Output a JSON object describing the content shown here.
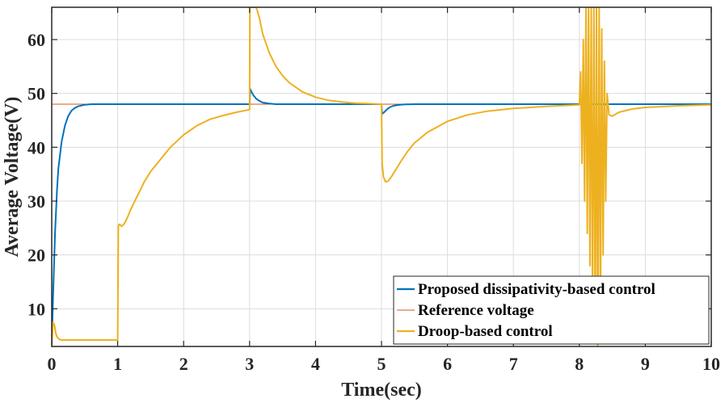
{
  "chart_data": {
    "type": "line",
    "title": "",
    "xlabel": "Time(sec)",
    "ylabel": "Average Voltage(V)",
    "xlim": [
      0,
      10
    ],
    "ylim": [
      3,
      66
    ],
    "xticks": [
      0,
      1,
      2,
      3,
      4,
      5,
      6,
      7,
      8,
      9,
      10
    ],
    "yticks": [
      10,
      20,
      30,
      40,
      50,
      60
    ],
    "grid": true,
    "legend_position": "bottom-right",
    "series": [
      {
        "name": "Proposed dissipativity-based control",
        "color": "#0072BD",
        "x": [
          0,
          0.02,
          0.05,
          0.08,
          0.1,
          0.15,
          0.2,
          0.25,
          0.3,
          0.35,
          0.4,
          0.5,
          0.6,
          0.8,
          1.0,
          2.0,
          3.0,
          3.01,
          3.03,
          3.06,
          3.1,
          3.15,
          3.2,
          3.3,
          3.4,
          3.6,
          4.0,
          5.0,
          5.01,
          5.04,
          5.08,
          5.12,
          5.18,
          5.25,
          5.35,
          5.5,
          6.0,
          7.0,
          8.0,
          9.0,
          10.0
        ],
        "y": [
          3,
          12,
          24,
          32,
          36,
          41,
          44,
          45.8,
          46.8,
          47.3,
          47.6,
          47.9,
          48,
          48,
          48,
          48,
          48,
          50.8,
          50.3,
          49.6,
          49,
          48.6,
          48.3,
          48.1,
          48,
          48,
          48,
          48,
          46.2,
          46.5,
          47,
          47.4,
          47.7,
          47.85,
          47.95,
          48,
          48,
          48,
          48,
          48,
          48
        ]
      },
      {
        "name": "Reference voltage",
        "color": "#D95319",
        "x": [
          0,
          10
        ],
        "y": [
          48,
          48
        ]
      },
      {
        "name": "Droop-based control",
        "color": "#EDB120",
        "x": [
          0,
          0.02,
          0.04,
          0.06,
          0.08,
          0.1,
          0.12,
          0.15,
          0.2,
          0.3,
          0.5,
          0.7,
          0.9,
          1.0,
          1.01,
          1.03,
          1.06,
          1.1,
          1.15,
          1.2,
          1.3,
          1.4,
          1.5,
          1.6,
          1.8,
          2.0,
          2.2,
          2.4,
          2.6,
          2.8,
          3.0,
          3.005,
          3.02,
          3.05,
          3.1,
          3.15,
          3.2,
          3.3,
          3.4,
          3.5,
          3.6,
          3.8,
          4.0,
          4.2,
          4.4,
          4.6,
          4.8,
          5.0,
          5.01,
          5.03,
          5.06,
          5.1,
          5.15,
          5.2,
          5.3,
          5.4,
          5.5,
          5.7,
          6.0,
          6.3,
          6.6,
          7.0,
          7.5,
          8.0,
          8.02,
          8.04,
          8.06,
          8.08,
          8.1,
          8.12,
          8.14,
          8.16,
          8.18,
          8.2,
          8.22,
          8.24,
          8.26,
          8.28,
          8.3,
          8.32,
          8.34,
          8.36,
          8.38,
          8.4,
          8.42,
          8.45,
          8.5,
          8.6,
          8.8,
          9.0,
          9.5,
          10.0
        ],
        "y": [
          3,
          7.5,
          7,
          5.5,
          4.8,
          4.5,
          4.3,
          4.2,
          4.2,
          4.2,
          4.2,
          4.2,
          4.2,
          4.2,
          25.5,
          25.7,
          25.3,
          25.8,
          27,
          28.5,
          31,
          33.5,
          35.5,
          37,
          40,
          42.3,
          44,
          45.2,
          45.9,
          46.5,
          47,
          66,
          66,
          66,
          66,
          64,
          61,
          57.5,
          55,
          53.3,
          52,
          50.3,
          49.3,
          48.7,
          48.4,
          48.2,
          48.1,
          48,
          37,
          34.5,
          33.6,
          33.7,
          34.5,
          35.5,
          37.5,
          39.3,
          40.8,
          42.8,
          44.8,
          46,
          46.7,
          47.2,
          47.6,
          47.9,
          54,
          37,
          60,
          30,
          66,
          24,
          66,
          18,
          66,
          10,
          66,
          5,
          66,
          3,
          66,
          8,
          62,
          20,
          56,
          30,
          50,
          46,
          45.8,
          46.5,
          47.1,
          47.4,
          47.7,
          47.9
        ]
      }
    ]
  }
}
